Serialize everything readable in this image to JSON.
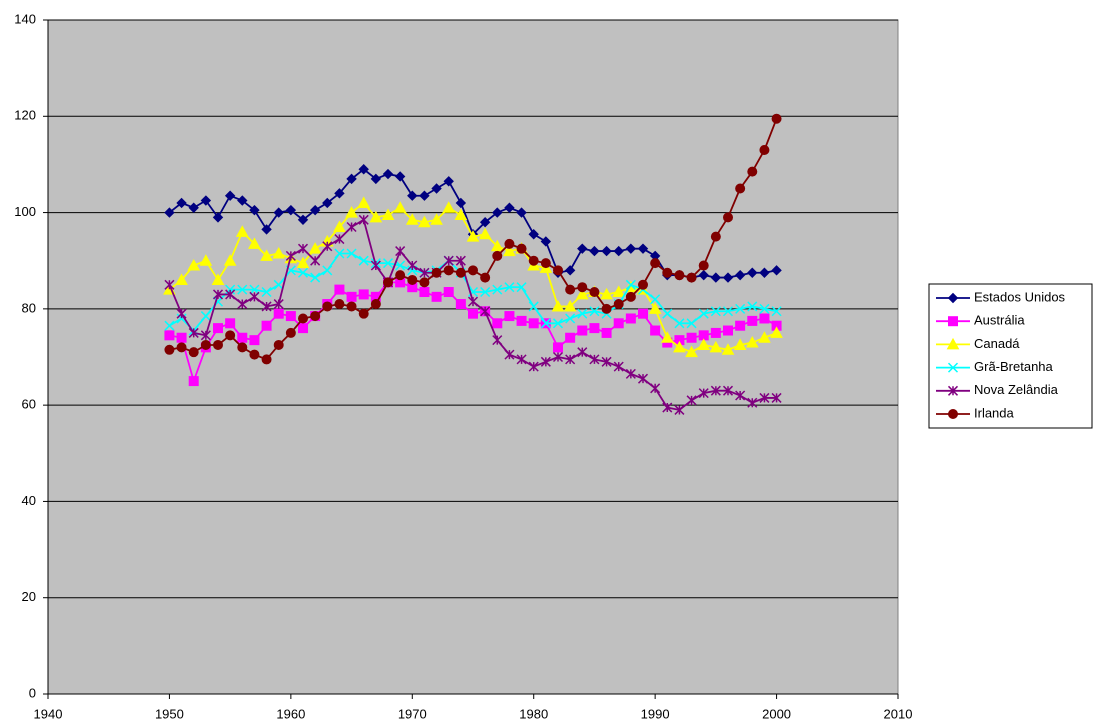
{
  "chart_data": {
    "type": "line",
    "legend": "right",
    "grid": true,
    "plot_background": "#c0c0c0",
    "x": [
      1950,
      1951,
      1952,
      1953,
      1954,
      1955,
      1956,
      1957,
      1958,
      1959,
      1960,
      1961,
      1962,
      1963,
      1964,
      1965,
      1966,
      1967,
      1968,
      1969,
      1970,
      1971,
      1972,
      1973,
      1974,
      1975,
      1976,
      1977,
      1978,
      1979,
      1980,
      1981,
      1982,
      1983,
      1984,
      1985,
      1986,
      1987,
      1988,
      1989,
      1990,
      1991,
      1992,
      1993,
      1994,
      1995,
      1996,
      1997,
      1998,
      1999,
      2000
    ],
    "xlim": [
      1940,
      2010
    ],
    "xticks": [
      1940,
      1950,
      1960,
      1970,
      1980,
      1990,
      2000,
      2010
    ],
    "ylim": [
      0,
      140
    ],
    "yticks": [
      0,
      20,
      40,
      60,
      80,
      100,
      120,
      140
    ],
    "series": [
      {
        "name": "Estados Unidos",
        "color": "#000080",
        "marker": "diamond",
        "values": [
          100,
          102,
          101,
          102.5,
          99,
          103.5,
          102.5,
          100.5,
          96.5,
          100,
          100.5,
          98.5,
          100.5,
          102,
          104,
          107,
          109,
          107,
          108,
          107.5,
          103.5,
          103.5,
          105,
          106.5,
          102,
          95.5,
          98,
          100,
          101,
          100,
          95.5,
          94,
          87.5,
          88,
          92.5,
          92,
          92,
          92,
          92.5,
          92.5,
          91,
          87,
          87,
          86.5,
          87,
          86.5,
          86.5,
          87,
          87.5,
          87.5,
          88
        ]
      },
      {
        "name": "Austrália",
        "color": "#ff00ff",
        "marker": "square",
        "values": [
          74.5,
          74,
          65,
          72,
          76,
          77,
          74,
          73.5,
          76.5,
          79,
          78.5,
          76,
          78.5,
          81,
          84,
          82.5,
          83,
          82.5,
          85.5,
          85.5,
          84.5,
          83.5,
          82.5,
          83.5,
          81,
          79,
          79.5,
          77,
          78.5,
          77.5,
          77,
          77,
          72,
          74,
          75.5,
          76,
          75,
          77,
          78,
          79,
          75.5,
          73,
          73.5,
          74,
          74.5,
          75,
          75.5,
          76.5,
          77.5,
          78,
          76.5
        ]
      },
      {
        "name": "Canadá",
        "color": "#ffff00",
        "marker": "triangle",
        "values": [
          84,
          86,
          89,
          90,
          86,
          90,
          96,
          93.5,
          91,
          91.5,
          90.5,
          89.5,
          92.5,
          94,
          97,
          100,
          102,
          99,
          99.5,
          101,
          98.5,
          98,
          98.5,
          101,
          99.5,
          95,
          95.5,
          93,
          92,
          92.5,
          89,
          88.5,
          80.5,
          80.5,
          83,
          83.5,
          83,
          83.5,
          84.5,
          84,
          80,
          74,
          72,
          71,
          72.5,
          72,
          71.5,
          72.5,
          73,
          74,
          75
        ]
      },
      {
        "name": "Grã-Bretanha",
        "color": "#00ffff",
        "marker": "x",
        "values": [
          76.5,
          78,
          75.5,
          78.5,
          81.5,
          84,
          84,
          84,
          83.5,
          85,
          88,
          87.5,
          86.5,
          88,
          91.5,
          91.5,
          90,
          89.5,
          89.5,
          89,
          88,
          87.5,
          88,
          90,
          87.5,
          83.5,
          83.5,
          84,
          84.5,
          84.5,
          80.5,
          77,
          77,
          78,
          79,
          79.5,
          79,
          81,
          85,
          84,
          82,
          79,
          77,
          77,
          79,
          79.5,
          79.5,
          80,
          80.5,
          80,
          79.5
        ]
      },
      {
        "name": "Nova Zelândia",
        "color": "#800080",
        "marker": "star",
        "values": [
          85,
          79,
          75,
          74.5,
          83,
          83,
          81,
          82.5,
          80.5,
          81,
          91,
          92.5,
          90,
          93,
          94.5,
          97,
          98.5,
          89,
          85.5,
          92,
          89,
          87.5,
          87.5,
          90,
          90,
          81.5,
          79.5,
          73.5,
          70.5,
          69.5,
          68,
          69,
          70,
          69.5,
          71,
          69.5,
          69,
          68,
          66.5,
          65.5,
          63.5,
          59.5,
          59,
          61,
          62.5,
          63,
          63,
          62,
          60.5,
          61.5,
          61.5
        ]
      },
      {
        "name": "Irlanda",
        "color": "#800000",
        "marker": "circle",
        "values": [
          71.5,
          72,
          71,
          72.5,
          72.5,
          74.5,
          72,
          70.5,
          69.5,
          72.5,
          75,
          78,
          78.5,
          80.5,
          81,
          80.5,
          79,
          81,
          85.5,
          87,
          86,
          85.5,
          87.5,
          88,
          87.5,
          88,
          86.5,
          91,
          93.5,
          92.5,
          90,
          89.5,
          88,
          84,
          84.5,
          83.5,
          80,
          81,
          82.5,
          85,
          89.5,
          87.5,
          87,
          86.5,
          89,
          95,
          99,
          105,
          108.5,
          113,
          119.5
        ]
      }
    ]
  }
}
